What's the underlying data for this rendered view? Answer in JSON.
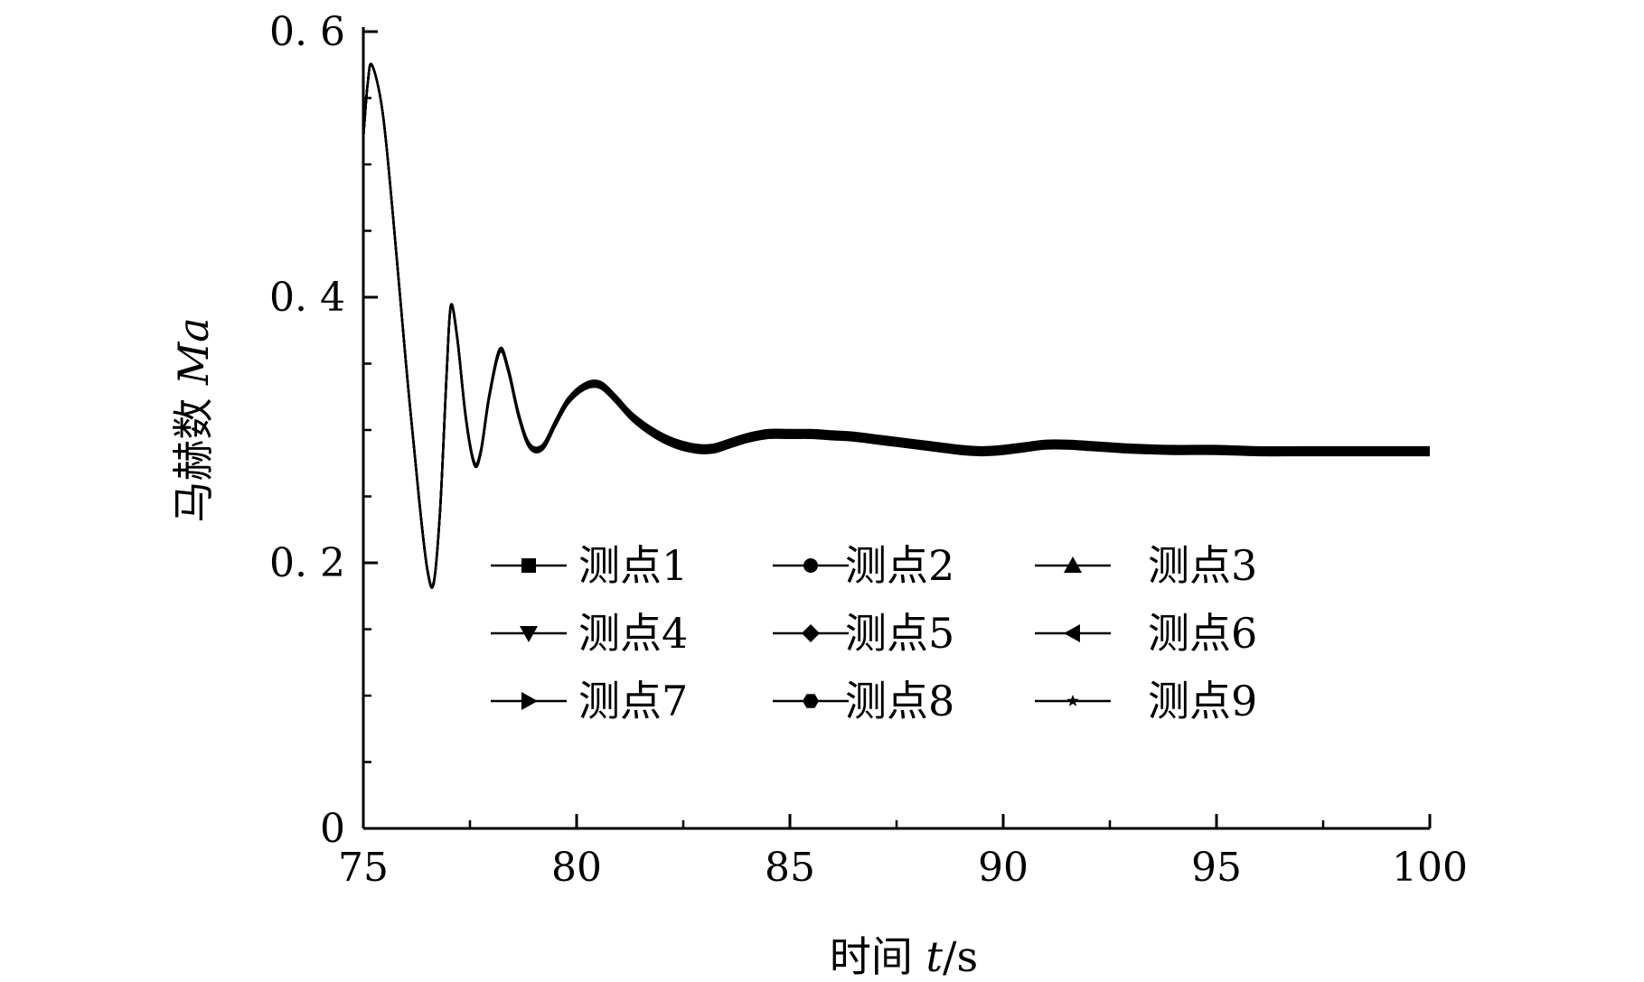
{
  "chart_data": {
    "type": "line",
    "xlabel": {
      "prefix": "时间 ",
      "var": "t",
      "suffix": "/s"
    },
    "ylabel": {
      "prefix": "马赫数 ",
      "var": "Ma"
    },
    "xlim": [
      75,
      100
    ],
    "ylim": [
      0,
      0.6
    ],
    "x_ticks": [
      75,
      80,
      85,
      90,
      95,
      100
    ],
    "x_tick_labels": [
      "75",
      "80",
      "85",
      "90",
      "95",
      "100"
    ],
    "y_ticks": [
      0,
      0.2,
      0.4,
      0.6
    ],
    "y_tick_labels": [
      "0",
      "0. 2",
      "0. 4",
      "0. 6"
    ],
    "grid": false,
    "legend_position": "center",
    "legend_columns": 3,
    "series": [
      {
        "name": "测点1",
        "marker": "square",
        "offset": 0.0
      },
      {
        "name": "测点2",
        "marker": "circle",
        "offset": 0.001
      },
      {
        "name": "测点3",
        "marker": "triangle-up",
        "offset": -0.001
      },
      {
        "name": "测点4",
        "marker": "triangle-down",
        "offset": 0.002
      },
      {
        "name": "测点5",
        "marker": "diamond",
        "offset": -0.002
      },
      {
        "name": "测点6",
        "marker": "triangle-left",
        "offset": 0.003
      },
      {
        "name": "测点7",
        "marker": "triangle-right",
        "offset": -0.003
      },
      {
        "name": "测点8",
        "marker": "hexagon",
        "offset": 0.0015
      },
      {
        "name": "测点9",
        "marker": "star",
        "offset": -0.0015
      }
    ],
    "base_curve": {
      "x": [
        75.0,
        75.1,
        75.2,
        75.45,
        75.7,
        76.0,
        76.3,
        76.5,
        76.65,
        76.8,
        76.95,
        77.05,
        77.2,
        77.4,
        77.6,
        77.75,
        77.95,
        78.2,
        78.4,
        78.65,
        78.9,
        79.2,
        79.5,
        79.8,
        80.2,
        80.55,
        80.9,
        81.3,
        81.8,
        82.3,
        82.8,
        83.2,
        83.6,
        84.0,
        84.5,
        85.0,
        85.5,
        86.0,
        86.5,
        87.0,
        87.5,
        88.0,
        88.5,
        89.0,
        89.5,
        90.0,
        90.5,
        91.0,
        91.5,
        92.0,
        92.5,
        93.0,
        94.0,
        95.0,
        96.0,
        97.0,
        98.0,
        99.0,
        100.0
      ],
      "y": [
        0.52,
        0.56,
        0.575,
        0.54,
        0.46,
        0.35,
        0.25,
        0.195,
        0.185,
        0.24,
        0.34,
        0.393,
        0.37,
        0.31,
        0.275,
        0.283,
        0.325,
        0.36,
        0.345,
        0.31,
        0.288,
        0.287,
        0.305,
        0.322,
        0.333,
        0.334,
        0.324,
        0.31,
        0.298,
        0.29,
        0.286,
        0.286,
        0.29,
        0.294,
        0.297,
        0.297,
        0.297,
        0.296,
        0.295,
        0.293,
        0.291,
        0.289,
        0.287,
        0.285,
        0.284,
        0.285,
        0.287,
        0.289,
        0.289,
        0.288,
        0.287,
        0.286,
        0.285,
        0.285,
        0.284,
        0.284,
        0.284,
        0.284,
        0.284
      ]
    }
  }
}
